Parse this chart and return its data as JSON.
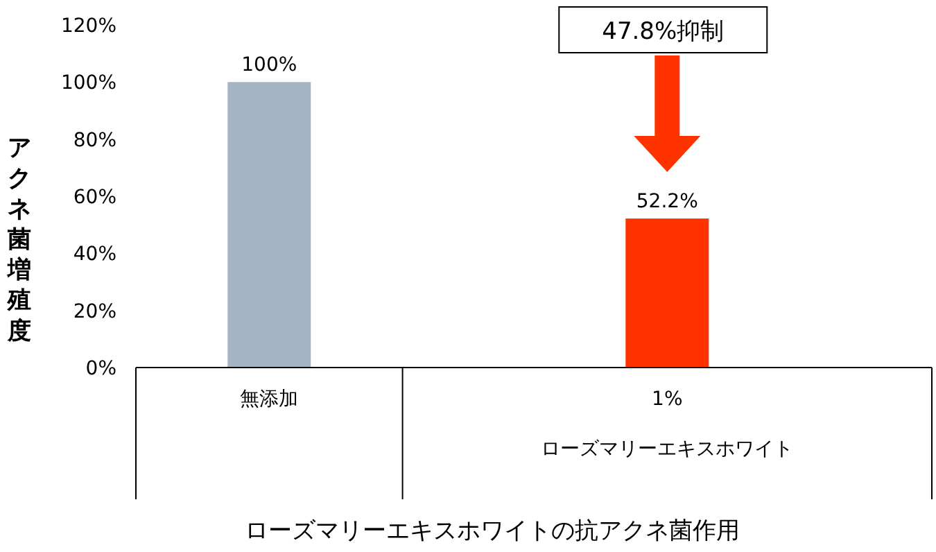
{
  "chart_data": {
    "type": "bar",
    "ylabel": "アクネ菌増殖度",
    "categories": [
      "無添加",
      "1%\nローズマリーエキスホワイト"
    ],
    "values": [
      100,
      52.2
    ],
    "colors": [
      "#a5b4c4",
      "#ff3300"
    ],
    "value_labels": [
      "100%",
      "52.2%"
    ],
    "ylim": [
      0,
      120
    ],
    "yticks": [
      {
        "value": 0,
        "label": "0%"
      },
      {
        "value": 20,
        "label": "20%"
      },
      {
        "value": 40,
        "label": "40%"
      },
      {
        "value": 60,
        "label": "60%"
      },
      {
        "value": 80,
        "label": "80%"
      },
      {
        "value": 100,
        "label": "100%"
      },
      {
        "value": 120,
        "label": "120%"
      }
    ],
    "annotations": [
      "47.8%抑制",
      "ローズマリーエキスホワイトの抗アクネ菌作用"
    ],
    "grid": false
  }
}
